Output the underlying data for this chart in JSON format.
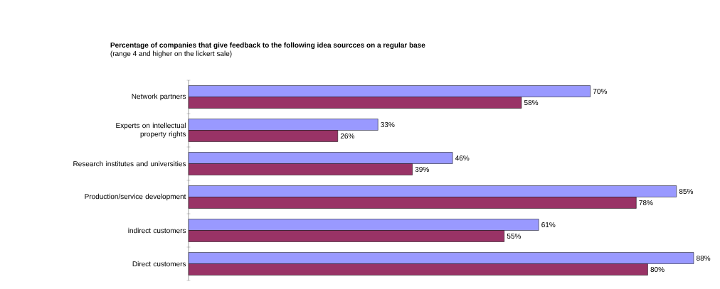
{
  "chart_data": {
    "type": "bar",
    "orientation": "horizontal",
    "title": "Percentage of companies that give feedback to the following idea sourcces on a regular base",
    "subtitle": "(range 4 and higher on the lickert sale)",
    "categories": [
      "Network partners",
      "Experts on intellectual property rights",
      "Research institutes and universities",
      "Production/service development",
      "indirect customers",
      "Direct customers"
    ],
    "series": [
      {
        "color": "#9999ff",
        "values": [
          70,
          33,
          46,
          85,
          61,
          88
        ],
        "value_labels": [
          "70%",
          "33%",
          "46%",
          "85%",
          "61%",
          "88%"
        ]
      },
      {
        "color": "#993366",
        "values": [
          58,
          26,
          39,
          78,
          55,
          80
        ],
        "value_labels": [
          "58%",
          "26%",
          "39%",
          "78%",
          "55%",
          "80%"
        ]
      }
    ]
  }
}
